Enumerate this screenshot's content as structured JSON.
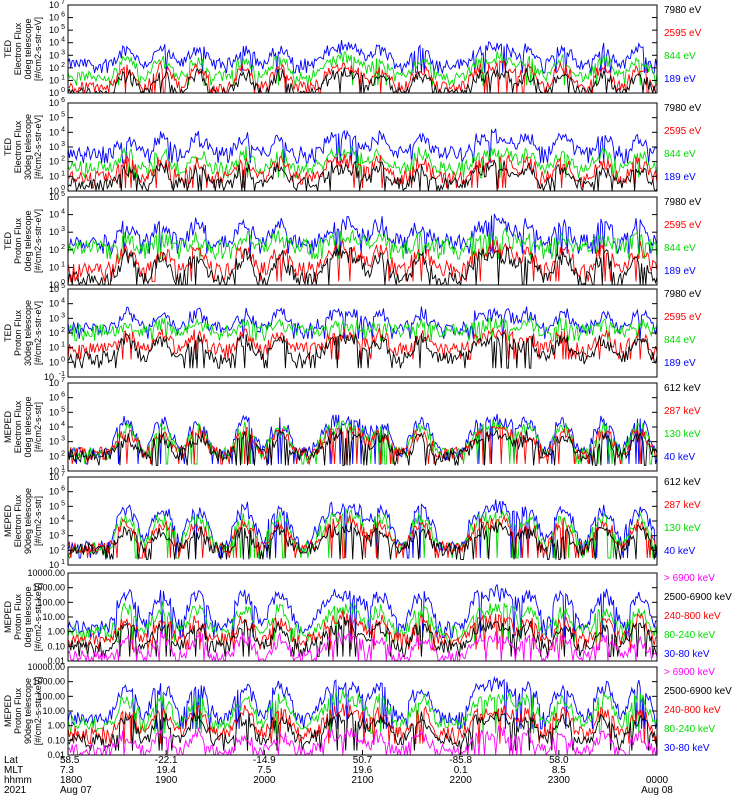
{
  "chart_data": [
    {
      "type": "line",
      "ylabel_lines": [
        "TED",
        "Electron Flux",
        "0deg telescope",
        "[#/cm2-s-str-eV]"
      ],
      "ylim": [
        1,
        10000000
      ],
      "yscale": "log",
      "ticks": [
        "10^0",
        "10^1",
        "10^2",
        "10^3",
        "10^4",
        "10^5",
        "10^6",
        "10^7"
      ],
      "series": [
        {
          "name": "7980 eV",
          "color": "#000000",
          "base": 1,
          "amp": 25
        },
        {
          "name": "2595 eV",
          "color": "#ff0000",
          "base": 3,
          "amp": 80
        },
        {
          "name": "844 eV",
          "color": "#00dd00",
          "base": 20,
          "amp": 400
        },
        {
          "name": "189 eV",
          "color": "#0000ff",
          "base": 200,
          "amp": 3000
        }
      ]
    },
    {
      "type": "line",
      "ylabel_lines": [
        "TED",
        "Electron Flux",
        "30deg telescope",
        "[#/cm2-s-str-eV]"
      ],
      "ylim": [
        1,
        1000000
      ],
      "yscale": "log",
      "ticks": [
        "10^0",
        "10^1",
        "10^2",
        "10^3",
        "10^4",
        "10^5",
        "10^6"
      ],
      "series": [
        {
          "name": "7980 eV",
          "color": "#000000",
          "base": 3,
          "amp": 30
        },
        {
          "name": "2595 eV",
          "color": "#ff0000",
          "base": 8,
          "amp": 80
        },
        {
          "name": "844 eV",
          "color": "#00dd00",
          "base": 40,
          "amp": 300
        },
        {
          "name": "189 eV",
          "color": "#0000ff",
          "base": 400,
          "amp": 4000
        }
      ]
    },
    {
      "type": "line",
      "ylabel_lines": [
        "TED",
        "Proton Flux",
        "0deg telescope",
        "[#/cm2-s-str-eV]"
      ],
      "ylim": [
        1,
        100000
      ],
      "yscale": "log",
      "ticks": [
        "10^0",
        "10^1",
        "10^2",
        "10^3",
        "10^4",
        "10^5"
      ],
      "series": [
        {
          "name": "7980 eV",
          "color": "#000000",
          "base": 2,
          "amp": 40
        },
        {
          "name": "2595 eV",
          "color": "#ff0000",
          "base": 8,
          "amp": 80
        },
        {
          "name": "844 eV",
          "color": "#00dd00",
          "base": 150,
          "amp": 300
        },
        {
          "name": "189 eV",
          "color": "#0000ff",
          "base": 300,
          "amp": 2000
        }
      ]
    },
    {
      "type": "line",
      "ylabel_lines": [
        "TED",
        "Proton Flux",
        "30deg telescope",
        "[#/cm2-s-str-eV]"
      ],
      "ylim": [
        0.1,
        100000
      ],
      "yscale": "log",
      "ticks": [
        "10^-1",
        "10^0",
        "10^1",
        "10^2",
        "10^3",
        "10^4",
        "10^5"
      ],
      "series": [
        {
          "name": "7980 eV",
          "color": "#000000",
          "base": 2,
          "amp": 30
        },
        {
          "name": "2595 eV",
          "color": "#ff0000",
          "base": 8,
          "amp": 60
        },
        {
          "name": "844 eV",
          "color": "#00dd00",
          "base": 150,
          "amp": 250
        },
        {
          "name": "189 eV",
          "color": "#0000ff",
          "base": 200,
          "amp": 2000
        }
      ]
    },
    {
      "type": "line",
      "ylabel_lines": [
        "MEPED",
        "Electron Flux",
        "0deg telescope",
        "[#/cm2-s-str]"
      ],
      "ylim": [
        10,
        10000000
      ],
      "yscale": "log",
      "ticks": [
        "10^1",
        "10^2",
        "10^3",
        "10^4",
        "10^5",
        "10^6",
        "10^7"
      ],
      "series": [
        {
          "name": "612 keV",
          "color": "#000000",
          "base": 120,
          "amp": 2000
        },
        {
          "name": "287 keV",
          "color": "#ff0000",
          "base": 150,
          "amp": 4000
        },
        {
          "name": "130 keV",
          "color": "#00dd00",
          "base": 150,
          "amp": 8000
        },
        {
          "name": "40 keV",
          "color": "#0000ff",
          "base": 150,
          "amp": 20000
        }
      ]
    },
    {
      "type": "line",
      "ylabel_lines": [
        "MEPED",
        "Electron Flux",
        "90deg telescope",
        "[#/cm2-s-str]"
      ],
      "ylim": [
        10,
        10000000
      ],
      "yscale": "log",
      "ticks": [
        "10^1",
        "10^2",
        "10^3",
        "10^4",
        "10^5",
        "10^6",
        "10^7"
      ],
      "series": [
        {
          "name": "612 keV",
          "color": "#000000",
          "base": 120,
          "amp": 2000
        },
        {
          "name": "287 keV",
          "color": "#ff0000",
          "base": 150,
          "amp": 5000
        },
        {
          "name": "130 keV",
          "color": "#00dd00",
          "base": 150,
          "amp": 15000
        },
        {
          "name": "40 keV",
          "color": "#0000ff",
          "base": 150,
          "amp": 60000
        }
      ]
    },
    {
      "type": "line",
      "ylabel_lines": [
        "MEPED",
        "Proton Flux",
        "0deg telescope",
        "[#/cm2-s-str-keV]"
      ],
      "ylim": [
        0.01,
        10000
      ],
      "yscale": "log",
      "ticks": [
        "0.01",
        "0.10",
        "1.00",
        "10.00",
        "100.00",
        "1000.00",
        "10000.00"
      ],
      "series": [
        {
          "name": "> 6900 keV",
          "color": "#ff00ff",
          "base": 0.02,
          "amp": 0.3
        },
        {
          "name": "2500-6900 keV",
          "color": "#000000",
          "base": 0.1,
          "amp": 2
        },
        {
          "name": "240-800 keV",
          "color": "#ff0000",
          "base": 0.3,
          "amp": 5
        },
        {
          "name": "80-240 keV",
          "color": "#00dd00",
          "base": 1,
          "amp": 30
        },
        {
          "name": "30-80 keV",
          "color": "#0000ff",
          "base": 2,
          "amp": 300
        }
      ]
    },
    {
      "type": "line",
      "ylabel_lines": [
        "MEPED",
        "Proton Flux",
        "90deg telescope",
        "[#/cm2-s-str-keV]"
      ],
      "ylim": [
        0.01,
        10000
      ],
      "yscale": "log",
      "ticks": [
        "0.01",
        "0.10",
        "1.00",
        "10.00",
        "100.00",
        "1000.00",
        "10000.00"
      ],
      "series": [
        {
          "name": "> 6900 keV",
          "color": "#ff00ff",
          "base": 0.02,
          "amp": 0.2
        },
        {
          "name": "2500-6900 keV",
          "color": "#000000",
          "base": 0.1,
          "amp": 3
        },
        {
          "name": "240-800 keV",
          "color": "#ff0000",
          "base": 0.3,
          "amp": 8
        },
        {
          "name": "80-240 keV",
          "color": "#00dd00",
          "base": 1.5,
          "amp": 60
        },
        {
          "name": "30-80 keV",
          "color": "#0000ff",
          "base": 3,
          "amp": 400
        }
      ]
    }
  ],
  "x_axis": {
    "row_labels": [
      "Lat",
      "MLT",
      "hhmm",
      "2021"
    ],
    "ticks": [
      {
        "t": 0.0,
        "lat": "58.5",
        "mlt": "7.3",
        "hhmm": "1800",
        "date": "Aug 07"
      },
      {
        "t": 0.2,
        "lat": "-22.1",
        "mlt": "19.4",
        "hhmm": "1900",
        "date": ""
      },
      {
        "t": 0.4,
        "lat": "-14.9",
        "mlt": "7.5",
        "hhmm": "2000",
        "date": ""
      },
      {
        "t": 0.6,
        "lat": "50.7",
        "mlt": "19.6",
        "hhmm": "2100",
        "date": ""
      },
      {
        "t": 0.8,
        "lat": "-85.8",
        "mlt": "0.1",
        "hhmm": "2200",
        "date": ""
      },
      {
        "t": 1.0,
        "lat": "58.0",
        "mlt": "8.5",
        "hhmm": "2300",
        "date": ""
      },
      {
        "t": 1.2,
        "lat": "",
        "mlt": "",
        "hhmm": "0000",
        "date": "Aug 08"
      }
    ]
  }
}
